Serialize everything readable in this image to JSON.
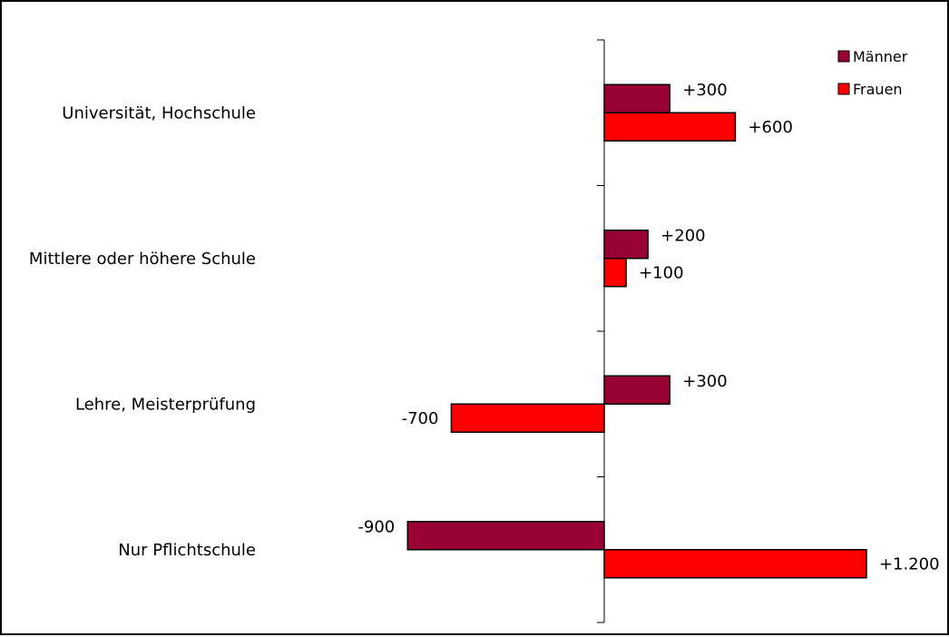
{
  "chart_data": {
    "type": "bar",
    "orientation": "horizontal",
    "categories": [
      "Universität, Hochschule",
      "Mittlere oder höhere Schule",
      "Lehre, Meisterprüfung",
      "Nur Pflichtschule"
    ],
    "series": [
      {
        "name": "Männer",
        "color": "#990033",
        "values": [
          300,
          200,
          300,
          -900
        ],
        "labels": [
          "+300",
          "+200",
          "+300",
          "-900"
        ]
      },
      {
        "name": "Frauen",
        "color": "#ff0000",
        "values": [
          600,
          100,
          -700,
          1200
        ],
        "labels": [
          "+600",
          "+100",
          "-700",
          "+1.200"
        ]
      }
    ],
    "xlim": [
      -900,
      1200
    ],
    "grid": false,
    "legend": "top-right",
    "title": "",
    "xlabel": "",
    "ylabel": ""
  }
}
